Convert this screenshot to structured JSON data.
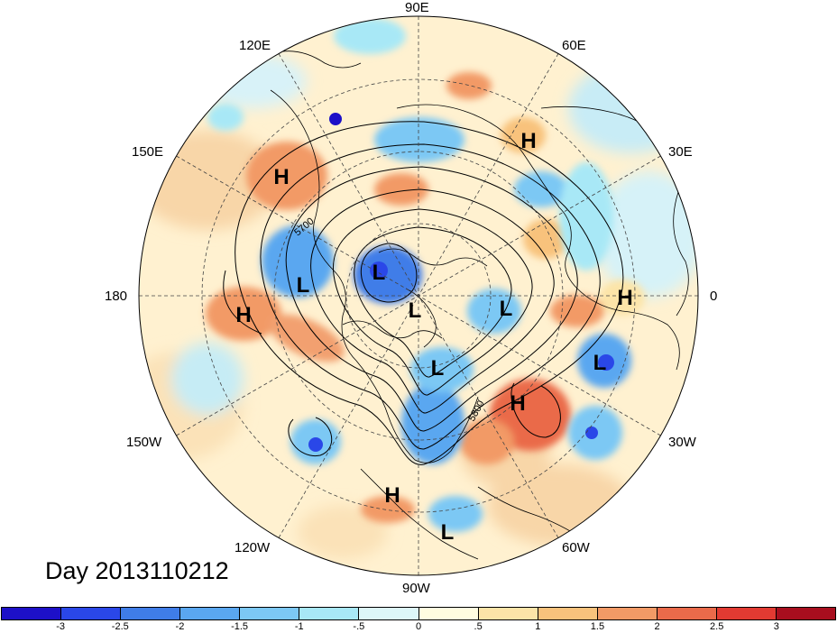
{
  "title": "Day 2013110212",
  "longitude_labels": [
    {
      "id": "90e",
      "text": "90E"
    },
    {
      "id": "60e",
      "text": "60E"
    },
    {
      "id": "120e",
      "text": "120E"
    },
    {
      "id": "30e",
      "text": "30E"
    },
    {
      "id": "150e",
      "text": "150E"
    },
    {
      "id": "0",
      "text": "0"
    },
    {
      "id": "180",
      "text": "180"
    },
    {
      "id": "30w",
      "text": "30W"
    },
    {
      "id": "150w",
      "text": "150W"
    },
    {
      "id": "60w",
      "text": "60W"
    },
    {
      "id": "120w",
      "text": "120W"
    },
    {
      "id": "90w",
      "text": "90W"
    }
  ],
  "contour_labels": [
    "5700",
    "5800"
  ],
  "pressure_centers": [
    {
      "type": "H"
    },
    {
      "type": "H"
    },
    {
      "type": "H"
    },
    {
      "type": "H"
    },
    {
      "type": "H"
    },
    {
      "type": "H"
    },
    {
      "type": "L"
    },
    {
      "type": "L"
    },
    {
      "type": "L"
    },
    {
      "type": "L"
    },
    {
      "type": "L"
    },
    {
      "type": "L"
    },
    {
      "type": "L"
    }
  ],
  "colorbar": {
    "colors": [
      "#1d10c8",
      "#2a47e8",
      "#3f7de8",
      "#5aa7f0",
      "#7cc8f4",
      "#a8e8f6",
      "#ddf6f8",
      "#fffce0",
      "#fce4a8",
      "#f8c27c",
      "#f29a66",
      "#ea6a4a",
      "#e23a32",
      "#a80e1e"
    ],
    "ticks": [
      "-3",
      "-2.5",
      "-2",
      "-1.5",
      "-1",
      "-.5",
      "0",
      ".5",
      "1",
      "1.5",
      "2",
      "2.5",
      "3"
    ]
  },
  "palette": {
    "ocean_base": "#fff4d6",
    "land_line": "#000000",
    "grid": "#555555"
  }
}
